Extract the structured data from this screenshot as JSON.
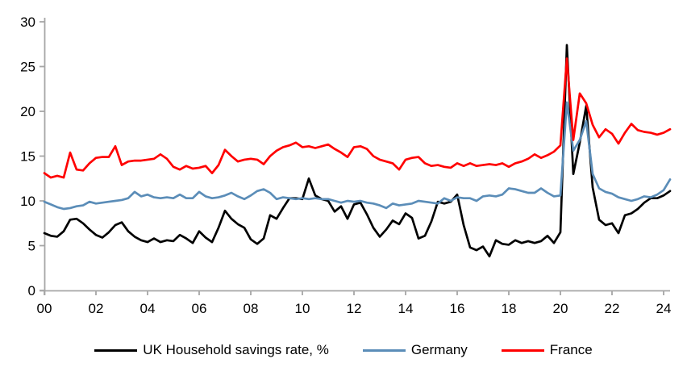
{
  "colors": {
    "axis": "#A6A6A6",
    "background": "#FFFFFF",
    "text": "#000000",
    "uk": "#000000",
    "germany": "#5B8DB8",
    "france": "#FF0000"
  },
  "chart_data": {
    "type": "line",
    "title": "",
    "xlabel": "",
    "ylabel": "",
    "x_start_year": 2000,
    "frequency": "quarterly",
    "x_tick_labels": [
      "00",
      "02",
      "04",
      "06",
      "08",
      "10",
      "12",
      "14",
      "16",
      "18",
      "20",
      "22",
      "24"
    ],
    "y_ticks": [
      0,
      5,
      10,
      15,
      20,
      25,
      30
    ],
    "ylim": [
      0,
      30
    ],
    "grid": false,
    "legend_position": "bottom",
    "series": [
      {
        "name": "UK Household savings rate, %",
        "color_key": "uk",
        "values": [
          6.4,
          6.1,
          6.0,
          6.6,
          7.9,
          8.0,
          7.5,
          6.8,
          6.2,
          5.9,
          6.5,
          7.3,
          7.6,
          6.6,
          6.0,
          5.6,
          5.4,
          5.8,
          5.4,
          5.6,
          5.5,
          6.2,
          5.8,
          5.3,
          6.6,
          5.9,
          5.4,
          7.0,
          8.9,
          8.0,
          7.4,
          7.0,
          5.7,
          5.2,
          5.8,
          8.4,
          8.0,
          9.2,
          10.3,
          10.3,
          10.2,
          12.5,
          10.6,
          10.2,
          10.0,
          8.8,
          9.4,
          8.0,
          9.6,
          9.8,
          8.5,
          7.0,
          6.0,
          6.8,
          7.8,
          7.4,
          8.6,
          8.1,
          5.8,
          6.1,
          7.7,
          9.9,
          9.7,
          9.9,
          10.7,
          7.3,
          4.8,
          4.5,
          4.9,
          3.8,
          5.6,
          5.2,
          5.1,
          5.6,
          5.3,
          5.5,
          5.3,
          5.5,
          6.1,
          5.3,
          6.5,
          27.4,
          13.0,
          16.5,
          20.6,
          11.5,
          7.9,
          7.3,
          7.5,
          6.4,
          8.4,
          8.6,
          9.1,
          9.8,
          10.3,
          10.3,
          10.6,
          11.1
        ]
      },
      {
        "name": "Germany",
        "color_key": "germany",
        "values": [
          9.9,
          9.6,
          9.3,
          9.1,
          9.2,
          9.4,
          9.5,
          9.9,
          9.7,
          9.8,
          9.9,
          10.0,
          10.1,
          10.3,
          11.0,
          10.5,
          10.7,
          10.4,
          10.3,
          10.4,
          10.3,
          10.7,
          10.3,
          10.3,
          11.0,
          10.5,
          10.3,
          10.4,
          10.6,
          10.9,
          10.5,
          10.2,
          10.6,
          11.1,
          11.3,
          10.9,
          10.2,
          10.4,
          10.3,
          10.2,
          10.3,
          10.2,
          10.3,
          10.2,
          10.2,
          10.0,
          9.8,
          10.0,
          9.9,
          10.0,
          9.8,
          9.7,
          9.5,
          9.2,
          9.7,
          9.5,
          9.6,
          9.7,
          10.0,
          9.9,
          9.8,
          9.7,
          10.3,
          10.0,
          10.4,
          10.3,
          10.3,
          10.0,
          10.5,
          10.6,
          10.5,
          10.7,
          11.4,
          11.3,
          11.1,
          10.9,
          10.9,
          11.4,
          10.9,
          10.5,
          10.6,
          21.0,
          15.6,
          16.8,
          18.9,
          13.0,
          11.4,
          11.0,
          10.8,
          10.4,
          10.2,
          10.0,
          10.2,
          10.5,
          10.4,
          10.7,
          11.2,
          12.4
        ]
      },
      {
        "name": "France",
        "color_key": "france",
        "values": [
          13.1,
          12.6,
          12.8,
          12.6,
          15.4,
          13.5,
          13.4,
          14.2,
          14.8,
          14.9,
          14.9,
          16.1,
          14.0,
          14.4,
          14.5,
          14.5,
          14.6,
          14.7,
          15.2,
          14.7,
          13.8,
          13.5,
          13.9,
          13.6,
          13.7,
          13.9,
          13.1,
          14.0,
          15.7,
          15.0,
          14.4,
          14.6,
          14.7,
          14.6,
          14.1,
          15.0,
          15.6,
          16.0,
          16.2,
          16.5,
          16.0,
          16.1,
          15.9,
          16.1,
          16.3,
          15.8,
          15.4,
          14.9,
          16.0,
          16.1,
          15.8,
          15.0,
          14.6,
          14.4,
          14.2,
          13.5,
          14.6,
          14.8,
          14.9,
          14.2,
          13.9,
          14.0,
          13.8,
          13.7,
          14.2,
          13.9,
          14.2,
          13.9,
          14.0,
          14.1,
          14.0,
          14.2,
          13.8,
          14.2,
          14.4,
          14.7,
          15.2,
          14.8,
          15.1,
          15.5,
          16.2,
          25.9,
          16.8,
          22.0,
          20.9,
          18.5,
          17.1,
          18.0,
          17.5,
          16.4,
          17.6,
          18.6,
          17.9,
          17.7,
          17.6,
          17.4,
          17.6,
          18.0
        ]
      }
    ]
  },
  "legend": {
    "items": [
      {
        "label": "UK Household savings rate, %"
      },
      {
        "label": "Germany"
      },
      {
        "label": "France"
      }
    ]
  }
}
